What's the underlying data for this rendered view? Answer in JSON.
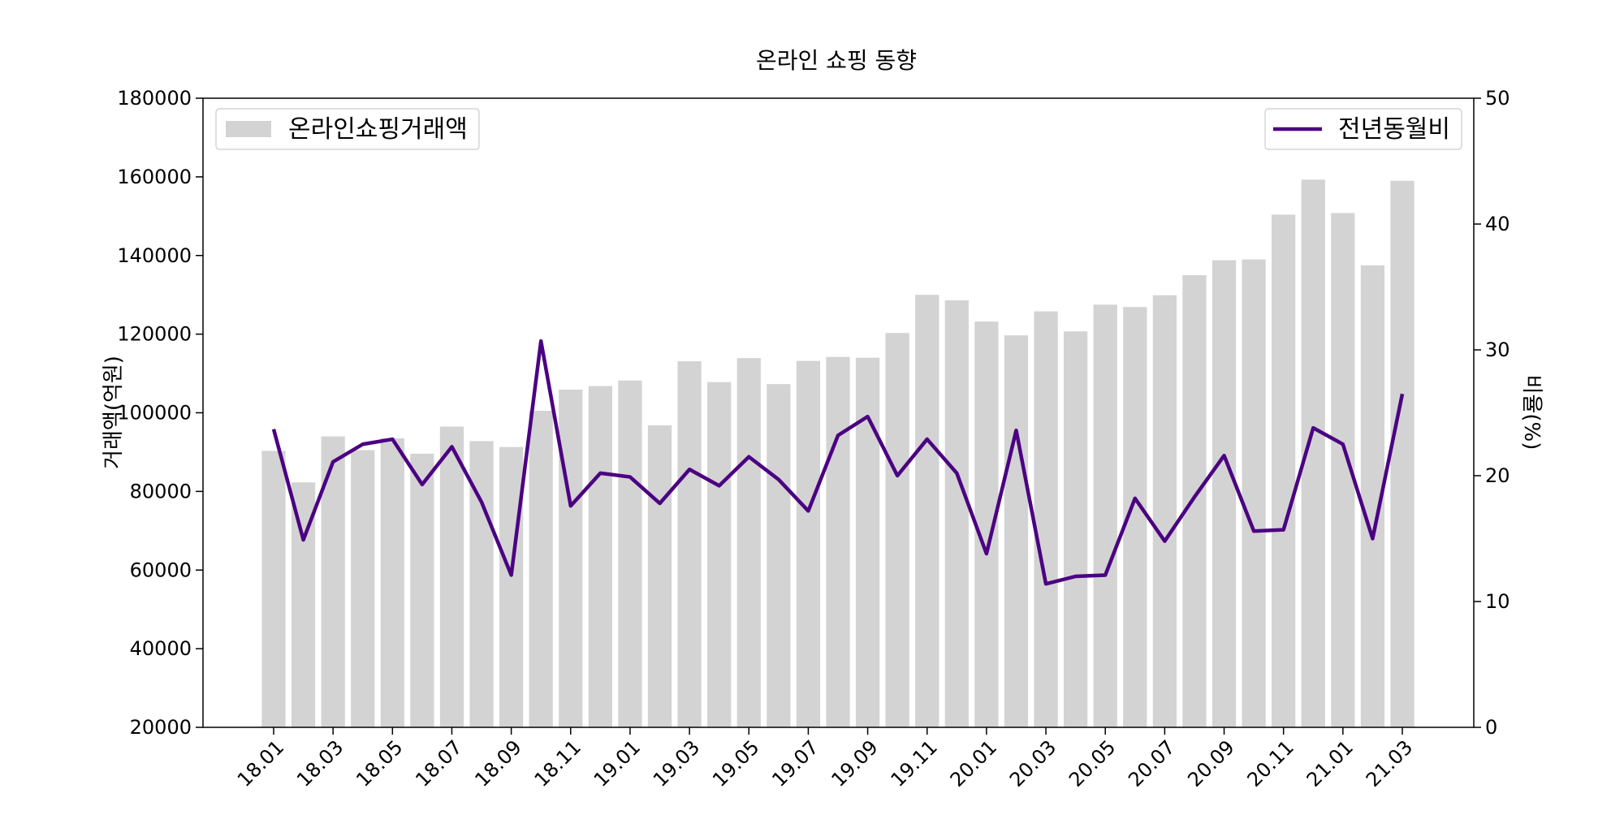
{
  "chart_data": {
    "type": "bar",
    "title": "온라인 쇼핑 동향",
    "ylabel": "거래액(억원)",
    "y2label": "비율(%)",
    "ylim": [
      20000,
      180000
    ],
    "y2lim": [
      0,
      50
    ],
    "yticks": [
      20000,
      40000,
      60000,
      80000,
      100000,
      120000,
      140000,
      160000,
      180000
    ],
    "y2ticks": [
      0,
      10,
      20,
      30,
      40,
      50
    ],
    "categories": [
      "18.01",
      "18.02",
      "18.03",
      "18.04",
      "18.05",
      "18.06",
      "18.07",
      "18.08",
      "18.09",
      "18.10",
      "18.11",
      "18.12",
      "19.01",
      "19.02",
      "19.03",
      "19.04",
      "19.05",
      "19.06",
      "19.07",
      "19.08",
      "19.09",
      "19.10",
      "19.11",
      "19.12",
      "20.01",
      "20.02",
      "20.03",
      "20.04",
      "20.05",
      "20.06",
      "20.07",
      "20.08",
      "20.09",
      "20.10",
      "20.11",
      "20.12",
      "21.01",
      "21.02",
      "21.03"
    ],
    "xtick_labels": [
      "18.01",
      "18.03",
      "18.05",
      "18.07",
      "18.09",
      "18.11",
      "19.01",
      "19.03",
      "19.05",
      "19.07",
      "19.09",
      "19.11",
      "20.01",
      "20.03",
      "20.05",
      "20.07",
      "20.09",
      "20.11",
      "21.01",
      "21.03"
    ],
    "series": [
      {
        "name": "온라인쇼핑거래액",
        "kind": "bar",
        "axis": "left",
        "color": "#d3d3d3",
        "values": [
          90300,
          82300,
          94000,
          90500,
          93500,
          89600,
          96500,
          92800,
          91300,
          100500,
          105900,
          106800,
          108200,
          96800,
          113100,
          107800,
          113900,
          107300,
          113200,
          114200,
          114000,
          120300,
          130000,
          128600,
          123200,
          119700,
          125800,
          120700,
          127500,
          126900,
          129900,
          135000,
          138800,
          139000,
          150400,
          159300,
          150800,
          137500,
          159000
        ]
      },
      {
        "name": "전년동월비",
        "kind": "line",
        "axis": "right",
        "color": "#4b0082",
        "values": [
          23.7,
          14.9,
          21.1,
          22.5,
          22.9,
          19.3,
          22.3,
          17.9,
          12.1,
          30.7,
          17.6,
          20.2,
          19.9,
          17.8,
          20.5,
          19.2,
          21.5,
          19.7,
          17.2,
          23.2,
          24.7,
          20.0,
          22.9,
          20.2,
          13.8,
          23.6,
          11.4,
          12.0,
          12.1,
          18.2,
          14.8,
          18.3,
          21.6,
          15.6,
          15.7,
          23.8,
          22.5,
          15.0,
          26.5
        ]
      }
    ],
    "legends": [
      {
        "series": 0,
        "placement": "top-left"
      },
      {
        "series": 1,
        "placement": "top-right"
      }
    ]
  }
}
